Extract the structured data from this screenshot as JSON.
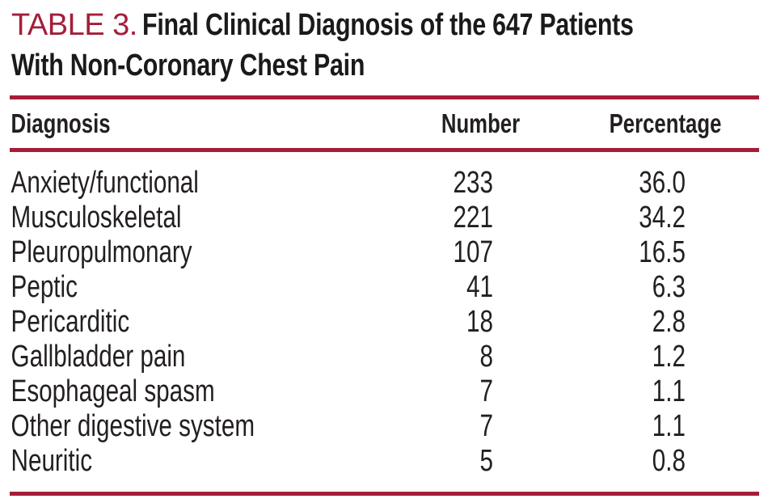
{
  "colors": {
    "accent": "#A41E39",
    "text": "#231F20",
    "title_black": "#1A1A1A"
  },
  "title": {
    "label": "TABLE 3.",
    "line1": "Final Clinical Diagnosis of the 647 Patients",
    "line2": "With Non-Coronary Chest Pain"
  },
  "table": {
    "columns": {
      "diagnosis": "Diagnosis",
      "number": "Number",
      "percentage": "Percentage"
    },
    "rows": [
      {
        "diagnosis": "Anxiety/functional",
        "number": "233",
        "percentage": "36.0"
      },
      {
        "diagnosis": "Musculoskeletal",
        "number": "221",
        "percentage": "34.2"
      },
      {
        "diagnosis": "Pleuropulmonary",
        "number": "107",
        "percentage": "16.5"
      },
      {
        "diagnosis": "Peptic",
        "number": "41",
        "percentage": "6.3"
      },
      {
        "diagnosis": "Pericarditic",
        "number": "18",
        "percentage": "2.8"
      },
      {
        "diagnosis": "Gallbladder pain",
        "number": "8",
        "percentage": "1.2"
      },
      {
        "diagnosis": "Esophageal spasm",
        "number": "7",
        "percentage": "1.1"
      },
      {
        "diagnosis": "Other digestive system",
        "number": "7",
        "percentage": "1.1"
      },
      {
        "diagnosis": "Neuritic",
        "number": "5",
        "percentage": "0.8"
      }
    ]
  },
  "chart_data": {
    "type": "table",
    "title": "TABLE 3. Final Clinical Diagnosis of the 647 Patients With Non-Coronary Chest Pain",
    "columns": [
      "Diagnosis",
      "Number",
      "Percentage"
    ],
    "rows": [
      [
        "Anxiety/functional",
        233,
        36.0
      ],
      [
        "Musculoskeletal",
        221,
        34.2
      ],
      [
        "Pleuropulmonary",
        107,
        16.5
      ],
      [
        "Peptic",
        41,
        6.3
      ],
      [
        "Pericarditic",
        18,
        2.8
      ],
      [
        "Gallbladder pain",
        8,
        1.2
      ],
      [
        "Esophageal spasm",
        7,
        1.1
      ],
      [
        "Other digestive system",
        7,
        1.1
      ],
      [
        "Neuritic",
        5,
        0.8
      ]
    ],
    "total_patients": 647
  }
}
